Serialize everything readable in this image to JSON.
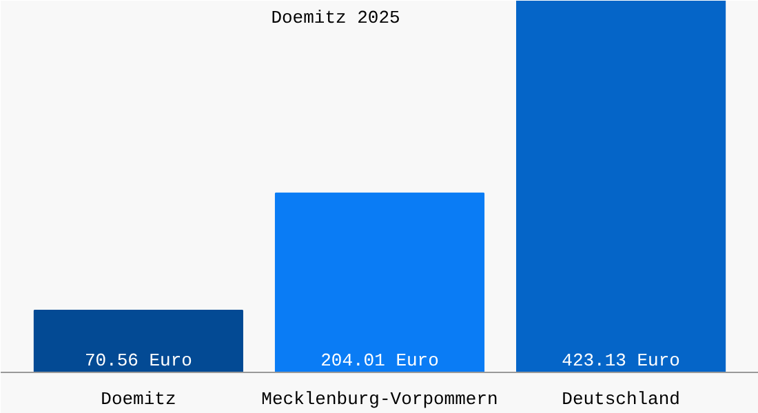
{
  "chart_data": {
    "type": "bar",
    "title": "Doemitz 2025",
    "categories": [
      "Doemitz",
      "Mecklenburg-Vorpommern",
      "Deutschland"
    ],
    "values": [
      70.56,
      204.01,
      423.13
    ],
    "colors": [
      "#034a94",
      "#0a7cf5",
      "#0565c8"
    ],
    "value_labels": [
      "70.56 Euro",
      "204.01 Euro",
      "423.13 Euro"
    ]
  }
}
